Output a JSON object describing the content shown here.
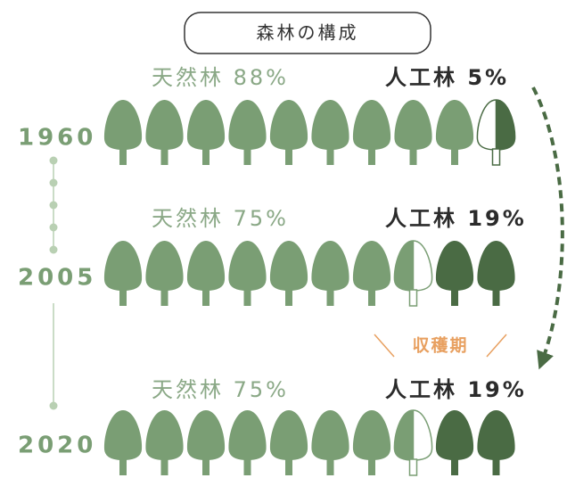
{
  "header": {
    "title": "森林の構成"
  },
  "rows": [
    {
      "year": "1960",
      "natural": "天然林 88%",
      "artificial": "人工林 5%"
    },
    {
      "year": "2005",
      "natural": "天然林 75%",
      "artificial": "人工林 19%"
    },
    {
      "year": "2020",
      "natural": "天然林 75%",
      "artificial": "人工林 19%"
    }
  ],
  "harvest_label": "収穫期"
}
